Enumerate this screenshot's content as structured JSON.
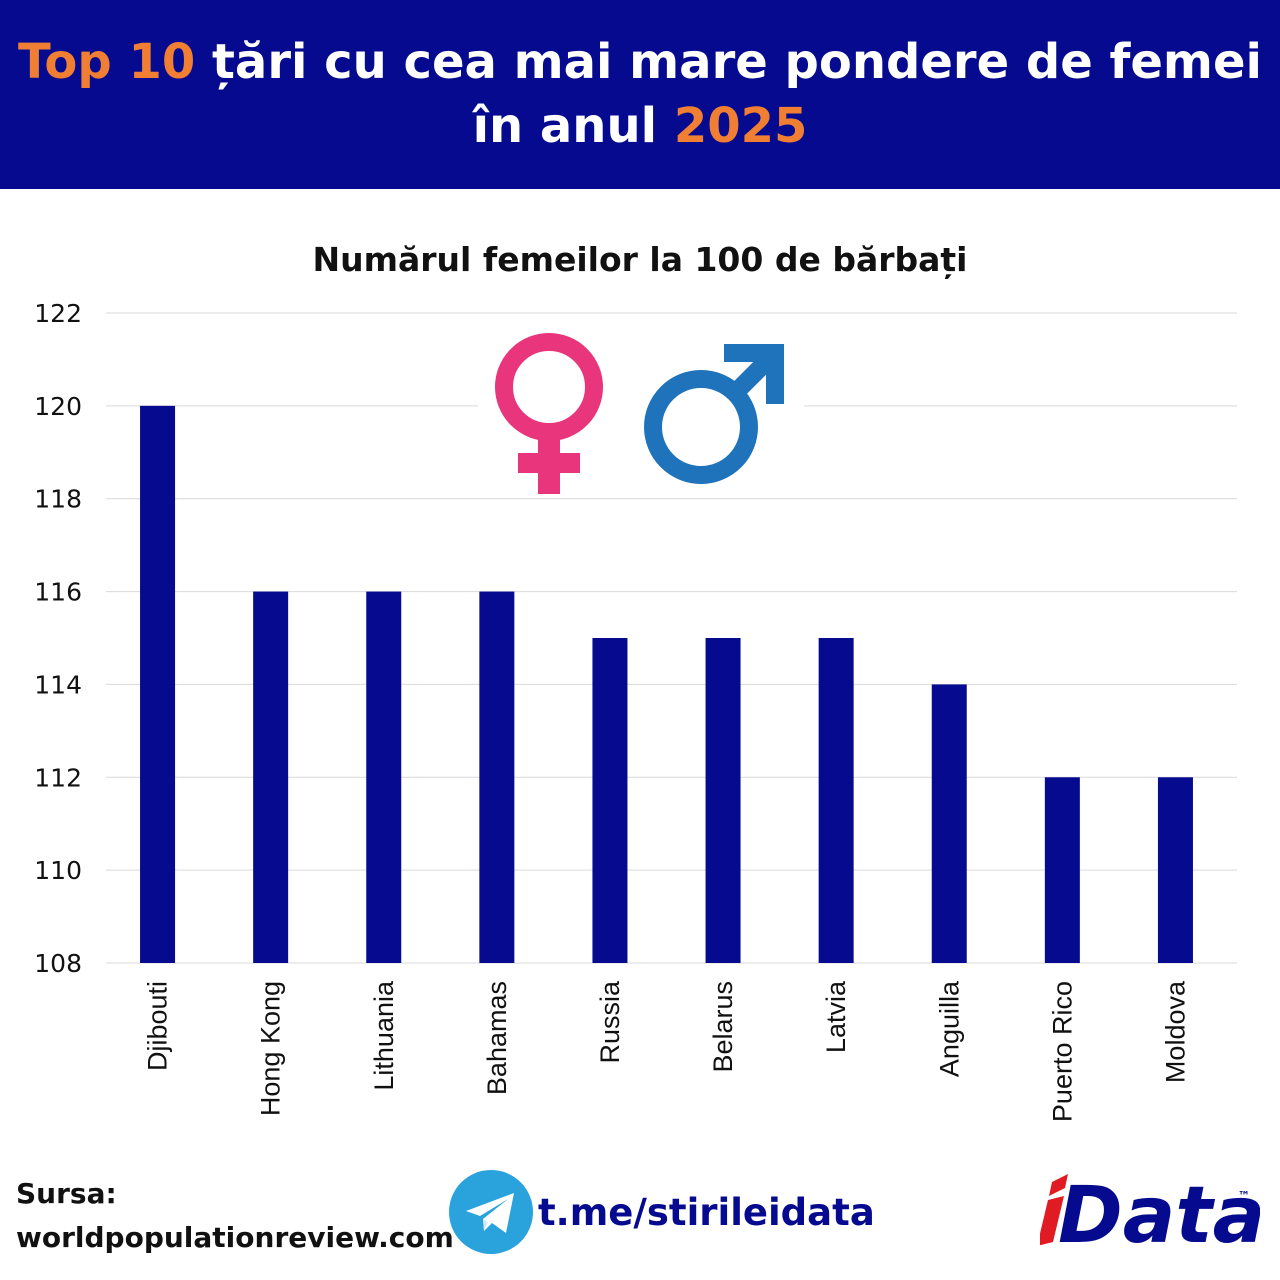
{
  "header": {
    "title_accent_1": "Top 10",
    "title_main": " țări cu cea mai mare pondere de femei în anul ",
    "title_accent_2": "2025"
  },
  "colors": {
    "header_bg": "#050a8f",
    "accent": "#f07f34",
    "bar": "#050a8f",
    "female_symbol": "#e8357b",
    "male_symbol": "#1f73bb",
    "telegram": "#2aa3dd",
    "logo_red": "#e01b24",
    "logo_blue": "#050a8f"
  },
  "chart_data": {
    "type": "bar",
    "title": "Numărul femeilor la 100 de bărbați",
    "categories": [
      "Djibouti",
      "Hong Kong",
      "Lithuania",
      "Bahamas",
      "Russia",
      "Belarus",
      "Latvia",
      "Anguilla",
      "Puerto Rico",
      "Moldova"
    ],
    "values": [
      120,
      116,
      116,
      116,
      115,
      115,
      115,
      114,
      112,
      112
    ],
    "ylim": [
      108,
      122
    ],
    "yticks": [
      108,
      110,
      112,
      114,
      116,
      118,
      120,
      122
    ],
    "grid": true,
    "legend": "none"
  },
  "decor": {
    "icons": [
      "female-symbol-icon",
      "male-symbol-icon",
      "telegram-icon"
    ]
  },
  "footer": {
    "source_label": "Sursa:",
    "source_value": "worldpopulationreview.com",
    "telegram_link": "t.me/stirileidata",
    "logo_text": "iData",
    "logo_tm": "™"
  }
}
